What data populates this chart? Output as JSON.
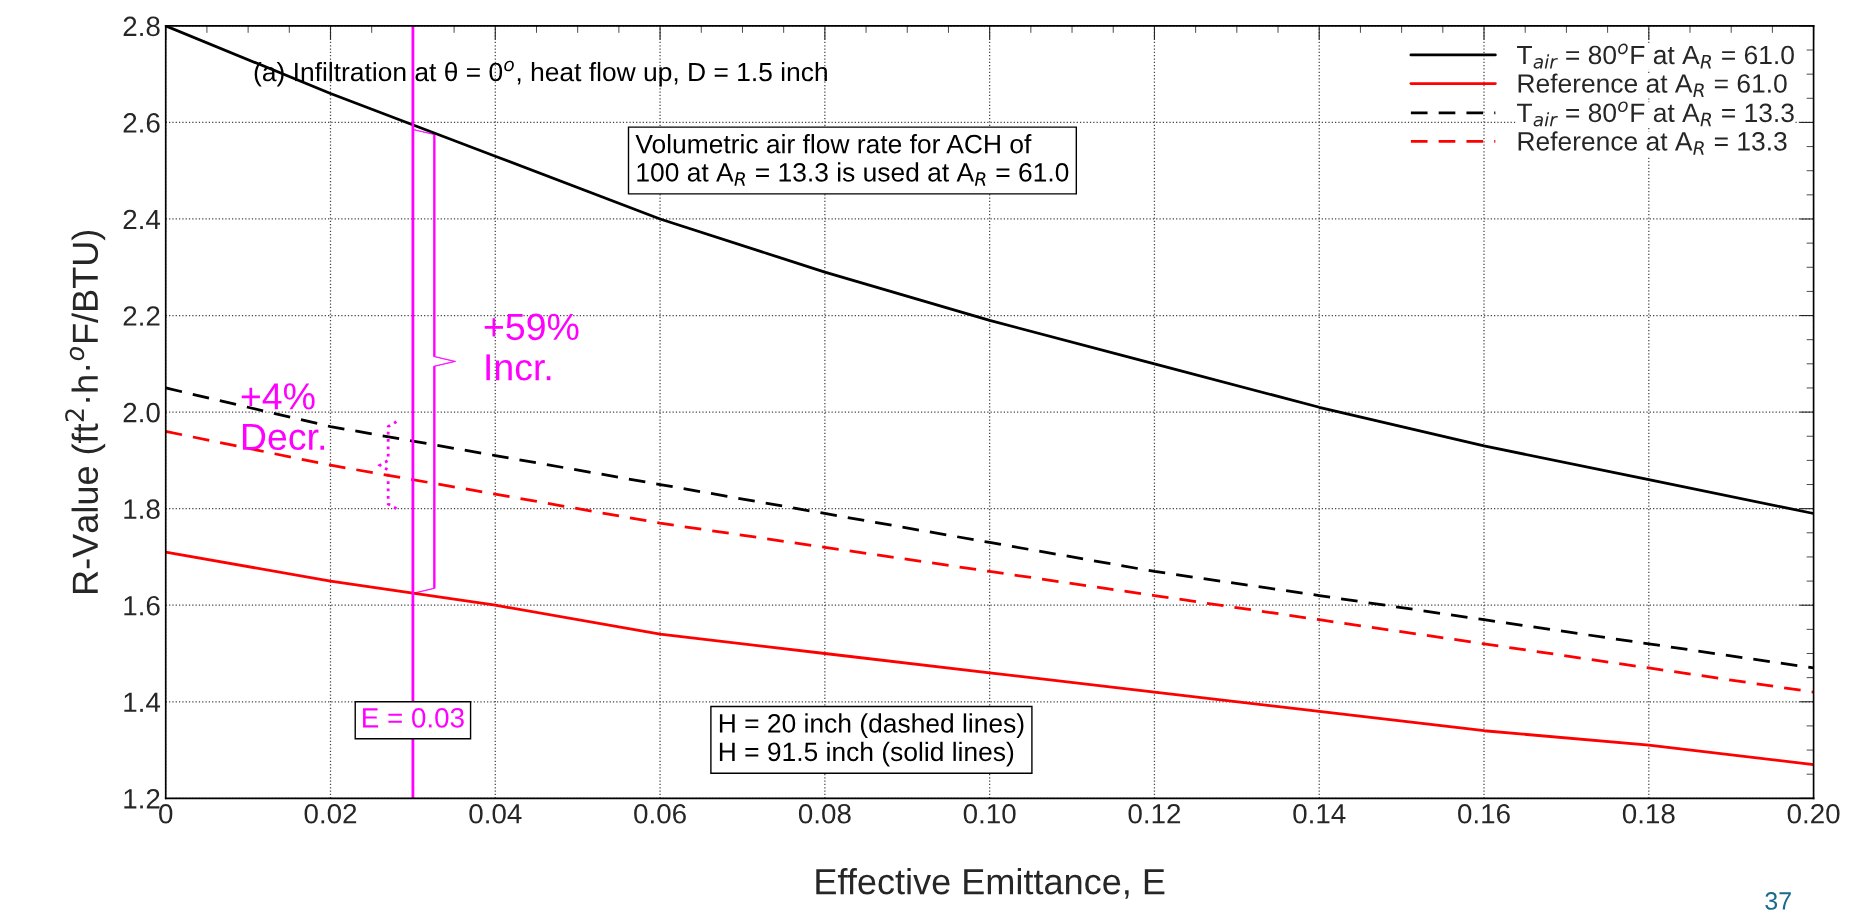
{
  "chart_data": {
    "type": "line",
    "xlabel": "Effective Emittance, E",
    "ylabel": "R-Value (ft$^{2}$·h·$^{o}$F/BTU)",
    "x": [
      0,
      0.02,
      0.04,
      0.06,
      0.08,
      0.1,
      0.12,
      0.14,
      0.16,
      0.18,
      0.2
    ],
    "series": [
      {
        "name": "T$_{air}$ = 80$^{o}$F at A$_{R}$ = 61.0",
        "color": "#000000",
        "line_style": "solid",
        "values": [
          2.8,
          2.66,
          2.53,
          2.4,
          2.29,
          2.19,
          2.1,
          2.01,
          1.93,
          1.86,
          1.79
        ]
      },
      {
        "name": "Reference at A$_{R}$ = 61.0",
        "color": "#ff0000",
        "line_style": "solid",
        "values": [
          1.71,
          1.65,
          1.6,
          1.54,
          1.5,
          1.46,
          1.42,
          1.38,
          1.34,
          1.31,
          1.27
        ]
      },
      {
        "name": "T$_{air}$ = 80$^{o}$F at A$_{R}$ = 13.3",
        "color": "#000000",
        "line_style": "dashed",
        "values": [
          2.05,
          1.97,
          1.91,
          1.85,
          1.79,
          1.73,
          1.67,
          1.62,
          1.57,
          1.52,
          1.47
        ]
      },
      {
        "name": "Reference at A$_{R}$ = 13.3",
        "color": "#ff0000",
        "line_style": "dashed",
        "values": [
          1.96,
          1.89,
          1.83,
          1.77,
          1.72,
          1.67,
          1.62,
          1.57,
          1.52,
          1.47,
          1.42
        ]
      }
    ],
    "xlim": [
      0,
      0.2
    ],
    "xticks": [
      0,
      0.02,
      0.04,
      0.06,
      0.08,
      {
        "value": 0.1,
        "label": "0.10"
      },
      0.12,
      0.14,
      0.16,
      0.18,
      {
        "value": 0.2,
        "label": "0.20"
      }
    ],
    "ylim": [
      1.2,
      2.8
    ],
    "yticks": [
      1.2,
      1.4,
      1.6,
      1.8,
      {
        "value": 2.0,
        "label": "2.0"
      },
      2.2,
      2.4,
      2.6,
      2.8
    ],
    "grid": true,
    "legend": "top right",
    "ref_lines": [
      {
        "axis": "x",
        "value": 0.03,
        "label": "E = 0.03",
        "color": "#ff00ff"
      }
    ],
    "annotations": [
      "(a) Infiltration at θ = 0$^{o}$, heat flow up, D = 1.5 inch",
      "Volumetric air flow rate for ACH of\n100 at A$_{R}$ = 13.3 is used at A$_{R}$ = 61.0",
      "H = 20 inch (dashed lines)\nH = 91.5 inch (solid lines)",
      "+59%\nIncr.",
      "+4%\nDecr.",
      "37"
    ]
  }
}
